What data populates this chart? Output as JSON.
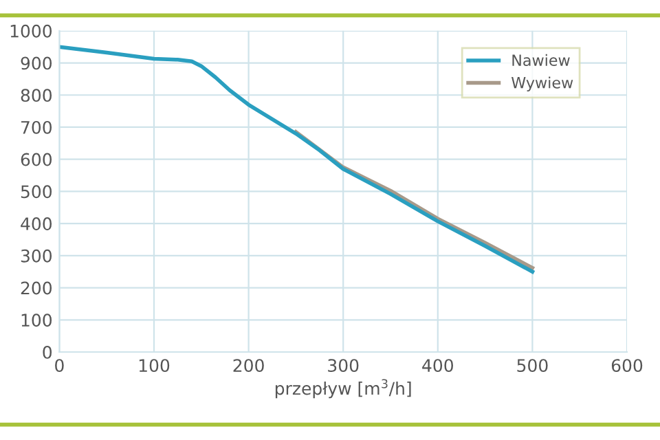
{
  "chart_data": {
    "type": "line",
    "xlabel": "przepływ [m$^{3}$/h]",
    "series": [
      {
        "name": "Wywiew",
        "color": "#a89a8a",
        "x": [
          250,
          300,
          350,
          400,
          450,
          500
        ],
        "values": [
          685,
          575,
          502,
          415,
          340,
          262
        ]
      },
      {
        "name": "Nawiew",
        "color": "#2a9fc0",
        "x": [
          0,
          50,
          100,
          125,
          140,
          150,
          165,
          180,
          200,
          225,
          250,
          275,
          300,
          350,
          400,
          450,
          500
        ],
        "values": [
          950,
          932,
          913,
          910,
          905,
          890,
          855,
          815,
          770,
          725,
          680,
          628,
          570,
          492,
          407,
          330,
          250
        ]
      }
    ],
    "xlim": [
      0,
      600
    ],
    "xticks": [
      0,
      100,
      200,
      300,
      400,
      500,
      600
    ],
    "ylim": [
      0,
      1000
    ],
    "yticks": [
      0,
      100,
      200,
      300,
      400,
      500,
      600,
      700,
      800,
      900,
      1000
    ],
    "grid": true,
    "legend": "top right",
    "marker": "none",
    "line_style": "solid"
  }
}
